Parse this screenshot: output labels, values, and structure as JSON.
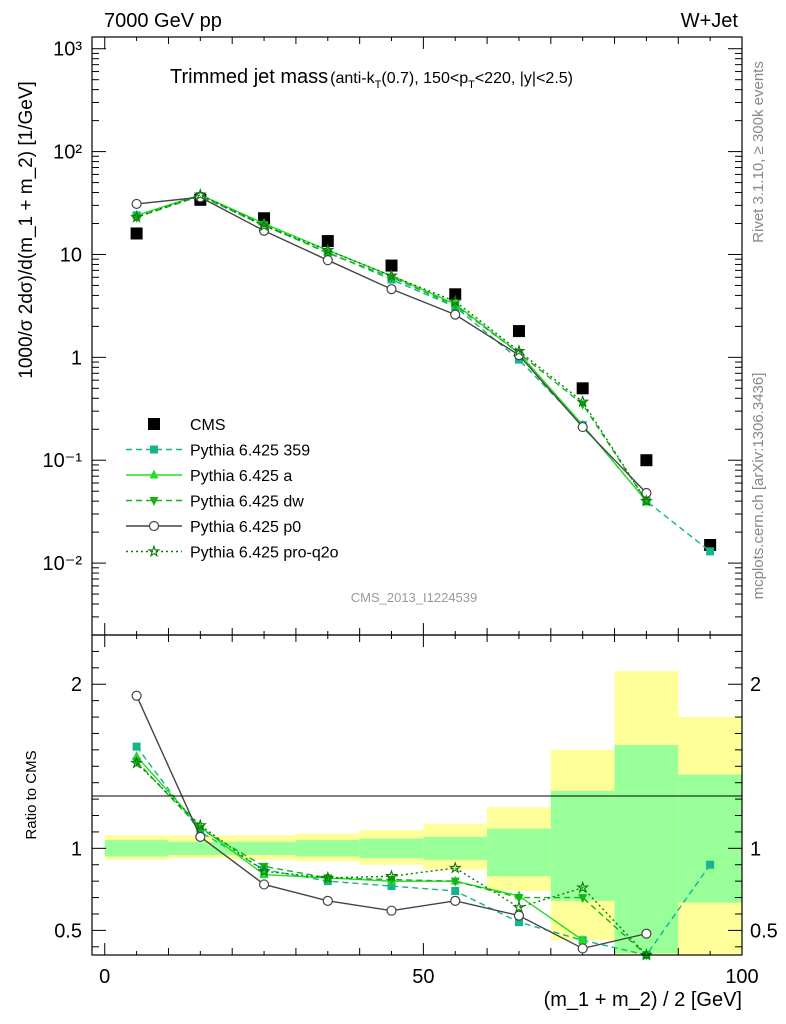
{
  "header": {
    "left": "7000 GeV pp",
    "right": "W+Jet"
  },
  "side_labels": {
    "rivet": "Rivet 3.1.10, ≥ 300k events",
    "mcplots": "mcplots.cern.ch [arXiv:1306.3436]"
  },
  "analysis_id": "CMS_2013_I1224539",
  "title": {
    "main": "Trimmed jet mass",
    "detail": "(anti-kT(0.7), 150<pT<220, |y|<2.5)"
  },
  "colors": {
    "cms": "#000000",
    "p359": "#14b48c",
    "pa": "#22dd22",
    "pdw": "#14b414",
    "pp0": "#444444",
    "pq2o": "#0a7a0a",
    "band_inner": "#99ff99",
    "band_outer": "#ffff99"
  },
  "chart_data": [
    {
      "type": "line",
      "panel": "main",
      "ylabel": "1000/σ 2dσ)/d(m_1 + m_2) [1/GeV]",
      "yscale": "log",
      "xlim": [
        -2,
        100
      ],
      "ylim": [
        0.002,
        1300
      ],
      "y_tick_labels": [
        "10⁻²",
        "10⁻¹",
        "1",
        "10",
        "10²",
        "10³"
      ],
      "legend_position": "bottom-left",
      "x": [
        5,
        15,
        25,
        35,
        45,
        55,
        65,
        75,
        85,
        95
      ],
      "series": [
        {
          "id": "cms",
          "name": "CMS",
          "style": "square",
          "values": [
            16,
            34,
            22.5,
            13.5,
            7.8,
            4.1,
            1.8,
            0.5,
            0.1,
            0.015
          ]
        },
        {
          "id": "p359",
          "name": "Pythia 6.425 359",
          "style": "dashed-square",
          "values": [
            24,
            37,
            19,
            10.5,
            5.7,
            3.1,
            0.95,
            0.22,
            0.04,
            0.013
          ]
        },
        {
          "id": "pa",
          "name": "Pythia 6.425 a",
          "style": "solid-triangle",
          "values": [
            24,
            38,
            20,
            11,
            6.2,
            3.3,
            1.1,
            0.22,
            0.04,
            null
          ]
        },
        {
          "id": "pdw",
          "name": "Pythia 6.425 dw",
          "style": "dashed-triangle-down",
          "values": [
            23,
            37,
            19.5,
            10.3,
            6,
            3.2,
            1.1,
            0.35,
            0.04,
            null
          ]
        },
        {
          "id": "pp0",
          "name": "Pythia 6.425 p0",
          "style": "solid-circle",
          "values": [
            31,
            36,
            17,
            8.8,
            4.6,
            2.6,
            1.05,
            0.21,
            0.048,
            null
          ]
        },
        {
          "id": "pq2o",
          "name": "Pythia 6.425 pro-q2o",
          "style": "dotted-star",
          "values": [
            23,
            38,
            19,
            11,
            6.2,
            3.5,
            1.15,
            0.37,
            0.04,
            null
          ]
        }
      ]
    },
    {
      "type": "line",
      "panel": "ratio",
      "ylabel": "Ratio to CMS",
      "xlabel": "(m_1 + m_2) / 2 [GeV]",
      "xlim": [
        -2,
        100
      ],
      "ylim": [
        0.35,
        2.3
      ],
      "x_tick_labels": [
        "0",
        "50",
        "100"
      ],
      "y_tick_labels": [
        "0.5",
        "1",
        "2"
      ],
      "bins": [
        [
          0,
          10
        ],
        [
          10,
          20
        ],
        [
          20,
          30
        ],
        [
          30,
          40
        ],
        [
          40,
          50
        ],
        [
          50,
          60
        ],
        [
          60,
          70
        ],
        [
          70,
          80
        ],
        [
          80,
          90
        ],
        [
          90,
          100
        ]
      ],
      "band_inner": [
        [
          0.95,
          1.05
        ],
        [
          0.96,
          1.04
        ],
        [
          0.96,
          1.04
        ],
        [
          0.95,
          1.05
        ],
        [
          0.94,
          1.06
        ],
        [
          0.93,
          1.07
        ],
        [
          0.83,
          1.12
        ],
        [
          0.68,
          1.35
        ],
        [
          0.36,
          1.63
        ],
        [
          0.67,
          1.45
        ]
      ],
      "band_outer": [
        [
          0.93,
          1.08
        ],
        [
          0.94,
          1.08
        ],
        [
          0.93,
          1.08
        ],
        [
          0.92,
          1.09
        ],
        [
          0.9,
          1.11
        ],
        [
          0.87,
          1.15
        ],
        [
          0.74,
          1.25
        ],
        [
          0.44,
          1.6
        ],
        [
          0.35,
          2.08
        ],
        [
          0.35,
          1.8
        ]
      ],
      "x": [
        5,
        15,
        25,
        35,
        45,
        55,
        65,
        75,
        85,
        95
      ],
      "series": [
        {
          "id": "p359",
          "values": [
            1.62,
            1.1,
            0.87,
            0.8,
            0.77,
            0.74,
            0.55,
            0.44,
            0.35,
            0.9
          ]
        },
        {
          "id": "pa",
          "values": [
            1.56,
            1.13,
            0.84,
            0.82,
            0.8,
            0.8,
            0.71,
            0.44,
            null,
            null
          ]
        },
        {
          "id": "pdw",
          "values": [
            1.53,
            1.12,
            0.89,
            0.82,
            0.81,
            0.8,
            0.7,
            0.7,
            0.35,
            null
          ]
        },
        {
          "id": "pp0",
          "values": [
            1.93,
            1.07,
            0.78,
            0.68,
            0.62,
            0.68,
            0.59,
            0.39,
            0.48,
            null
          ]
        },
        {
          "id": "pq2o",
          "values": [
            1.52,
            1.14,
            0.86,
            0.82,
            0.83,
            0.88,
            0.64,
            0.76,
            0.35,
            null
          ]
        }
      ]
    }
  ]
}
